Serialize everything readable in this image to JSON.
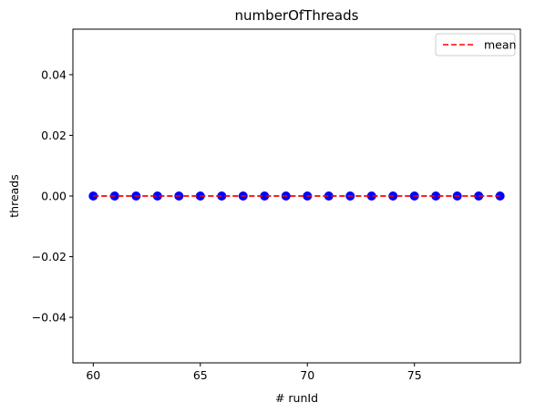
{
  "chart_data": {
    "type": "scatter",
    "title": "numberOfThreads",
    "xlabel": "# runId",
    "ylabel": "threads",
    "xlim": [
      59.05,
      79.95
    ],
    "ylim": [
      -0.055,
      0.055
    ],
    "xticks": [
      60,
      65,
      70,
      75
    ],
    "yticks": [
      -0.04,
      -0.02,
      0.0,
      0.02,
      0.04
    ],
    "ytick_labels": [
      "−0.04",
      "−0.02",
      "0.00",
      "0.02",
      "0.04"
    ],
    "grid": false,
    "legend_position": "top-right",
    "series": [
      {
        "kind": "points",
        "color": "#0000ff",
        "x": [
          60,
          61,
          62,
          63,
          64,
          65,
          66,
          67,
          68,
          69,
          70,
          71,
          72,
          73,
          74,
          75,
          76,
          77,
          78,
          79
        ],
        "y": [
          0,
          0,
          0,
          0,
          0,
          0,
          0,
          0,
          0,
          0,
          0,
          0,
          0,
          0,
          0,
          0,
          0,
          0,
          0,
          0
        ]
      },
      {
        "kind": "mean-line",
        "name": "mean",
        "color": "#ff0000",
        "x": [
          60,
          79
        ],
        "y": [
          0,
          0
        ]
      }
    ]
  }
}
